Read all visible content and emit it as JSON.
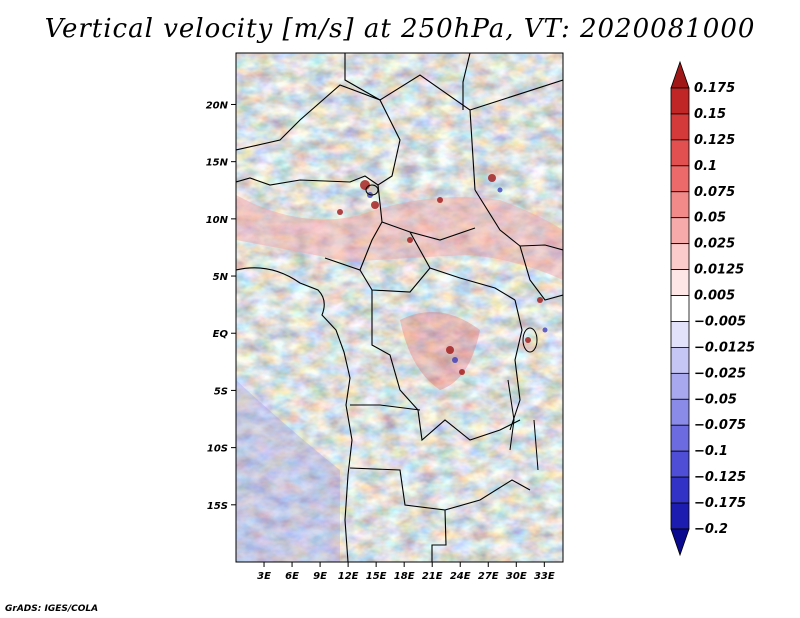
{
  "title": "Vertical velocity [m/s] at 250hPa, VT: 2020081000",
  "credit": "GrADS: IGES/COLA",
  "map": {
    "variable": "Vertical velocity",
    "units": "m/s",
    "level": "250hPa",
    "valid_time": "2020081000",
    "lat_range": [
      -20,
      24.5
    ],
    "lon_range": [
      0,
      35
    ],
    "lat_ticks": [
      {
        "value": 20,
        "label": "20N"
      },
      {
        "value": 15,
        "label": "15N"
      },
      {
        "value": 10,
        "label": "10N"
      },
      {
        "value": 5,
        "label": "5N"
      },
      {
        "value": 0,
        "label": "EQ"
      },
      {
        "value": -5,
        "label": "5S"
      },
      {
        "value": -10,
        "label": "10S"
      },
      {
        "value": -15,
        "label": "15S"
      }
    ],
    "lon_ticks": [
      {
        "value": 3,
        "label": "3E"
      },
      {
        "value": 6,
        "label": "6E"
      },
      {
        "value": 9,
        "label": "9E"
      },
      {
        "value": 12,
        "label": "12E"
      },
      {
        "value": 15,
        "label": "15E"
      },
      {
        "value": 18,
        "label": "18E"
      },
      {
        "value": 21,
        "label": "21E"
      },
      {
        "value": 24,
        "label": "24E"
      },
      {
        "value": 27,
        "label": "27E"
      },
      {
        "value": 30,
        "label": "30E"
      },
      {
        "value": 33,
        "label": "33E"
      }
    ]
  },
  "colorbar": {
    "labels": [
      "0.175",
      "0.15",
      "0.125",
      "0.1",
      "0.075",
      "0.05",
      "0.025",
      "0.0125",
      "0.005",
      "−0.005",
      "−0.0125",
      "−0.025",
      "−0.05",
      "−0.075",
      "−0.1",
      "−0.125",
      "−0.175",
      "−0.2"
    ],
    "colors": [
      "#a01818",
      "#c02626",
      "#d43a3a",
      "#e35050",
      "#ec6a6a",
      "#f28a8a",
      "#f7aaaa",
      "#fbcaca",
      "#fee6e6",
      "#ffffff",
      "#e2e2fb",
      "#c6c6f5",
      "#a8a8ee",
      "#8a8ae8",
      "#6c6ce0",
      "#4e4ed6",
      "#3232c6",
      "#1c1cb0",
      "#0a0a90"
    ]
  }
}
